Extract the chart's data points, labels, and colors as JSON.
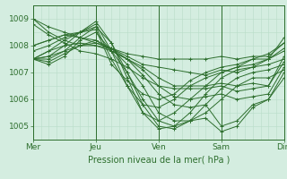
{
  "xlabel": "Pression niveau de la mer( hPa )",
  "bg_color": "#d4ede0",
  "plot_bg_color": "#d4ede0",
  "line_color": "#2d6e2d",
  "grid_color_fine": "#b8dcc8",
  "grid_color_major": "#90c8a8",
  "text_color": "#2d6e2d",
  "ylim": [
    1004.5,
    1009.5
  ],
  "xlim": [
    0,
    96
  ],
  "day_ticks": [
    0,
    24,
    48,
    72,
    96
  ],
  "day_labels": [
    "Mer",
    "Jeu",
    "Ven",
    "Sam",
    "Dim"
  ],
  "yticks": [
    1005,
    1006,
    1007,
    1008,
    1009
  ],
  "series": [
    [
      0,
      1009.0,
      6,
      1008.5,
      12,
      1008.2,
      18,
      1008.0,
      24,
      1008.0,
      30,
      1007.9,
      36,
      1007.7,
      42,
      1007.6,
      48,
      1007.5,
      54,
      1007.5,
      60,
      1007.5,
      66,
      1007.5,
      72,
      1007.6,
      78,
      1007.5,
      84,
      1007.6,
      90,
      1007.6,
      96,
      1008.1
    ],
    [
      0,
      1009.0,
      6,
      1008.7,
      12,
      1008.5,
      18,
      1008.3,
      24,
      1008.1,
      30,
      1007.9,
      36,
      1007.6,
      42,
      1007.3,
      48,
      1007.2,
      54,
      1007.1,
      60,
      1007.0,
      66,
      1006.9,
      72,
      1007.1,
      78,
      1007.0,
      84,
      1007.2,
      90,
      1007.5,
      96,
      1008.3
    ],
    [
      0,
      1008.8,
      6,
      1008.4,
      12,
      1008.1,
      18,
      1007.8,
      24,
      1007.7,
      30,
      1007.5,
      36,
      1007.2,
      42,
      1006.8,
      48,
      1006.5,
      54,
      1006.4,
      60,
      1006.4,
      66,
      1006.4,
      72,
      1006.5,
      78,
      1006.3,
      84,
      1006.4,
      90,
      1006.5,
      96,
      1007.6
    ],
    [
      0,
      1008.0,
      6,
      1008.2,
      12,
      1008.4,
      18,
      1008.3,
      24,
      1008.2,
      30,
      1007.8,
      36,
      1007.5,
      42,
      1007.2,
      48,
      1006.8,
      54,
      1006.5,
      60,
      1006.5,
      66,
      1006.5,
      72,
      1006.6,
      78,
      1006.5,
      84,
      1006.6,
      90,
      1006.5,
      96,
      1007.4
    ],
    [
      0,
      1007.5,
      6,
      1007.8,
      12,
      1008.0,
      18,
      1008.1,
      24,
      1008.0,
      30,
      1007.8,
      36,
      1007.5,
      42,
      1007.1,
      48,
      1006.5,
      54,
      1006.1,
      60,
      1006.0,
      66,
      1006.1,
      72,
      1006.2,
      78,
      1006.0,
      84,
      1006.1,
      90,
      1006.2,
      96,
      1007.2
    ],
    [
      0,
      1007.5,
      6,
      1007.6,
      12,
      1007.8,
      18,
      1008.0,
      24,
      1008.1,
      30,
      1007.9,
      36,
      1007.5,
      42,
      1006.9,
      48,
      1006.2,
      54,
      1005.8,
      60,
      1005.7,
      66,
      1005.8,
      72,
      1005.0,
      78,
      1005.2,
      84,
      1005.8,
      90,
      1006.0,
      96,
      1007.0
    ],
    [
      0,
      1007.5,
      6,
      1007.4,
      12,
      1007.7,
      18,
      1008.0,
      24,
      1008.2,
      30,
      1007.9,
      36,
      1007.3,
      42,
      1006.5,
      48,
      1005.5,
      54,
      1005.2,
      60,
      1005.2,
      66,
      1005.3,
      72,
      1004.8,
      78,
      1005.0,
      84,
      1005.7,
      90,
      1006.0,
      96,
      1006.8
    ],
    [
      0,
      1007.5,
      6,
      1007.3,
      12,
      1007.6,
      18,
      1008.2,
      24,
      1008.5,
      30,
      1007.8,
      36,
      1007.0,
      42,
      1006.0,
      48,
      1005.2,
      54,
      1005.0,
      60,
      1005.2,
      66,
      1005.5,
      72,
      1006.0,
      78,
      1006.5,
      84,
      1006.8,
      90,
      1006.8,
      96,
      1007.1
    ],
    [
      0,
      1007.5,
      6,
      1007.5,
      12,
      1007.8,
      18,
      1008.3,
      24,
      1008.7,
      30,
      1008.1,
      36,
      1007.0,
      42,
      1005.8,
      48,
      1005.0,
      54,
      1004.9,
      60,
      1005.2,
      66,
      1005.8,
      72,
      1006.4,
      78,
      1006.8,
      84,
      1007.0,
      90,
      1007.1,
      96,
      1007.3
    ],
    [
      0,
      1007.5,
      6,
      1007.6,
      12,
      1008.0,
      18,
      1008.5,
      24,
      1008.9,
      30,
      1008.1,
      36,
      1006.8,
      42,
      1005.5,
      48,
      1004.9,
      54,
      1005.0,
      60,
      1005.5,
      66,
      1006.2,
      72,
      1006.8,
      78,
      1007.1,
      84,
      1007.2,
      90,
      1007.3,
      96,
      1007.5
    ],
    [
      0,
      1007.5,
      6,
      1007.8,
      12,
      1008.2,
      18,
      1008.5,
      24,
      1008.8,
      30,
      1007.8,
      36,
      1006.5,
      42,
      1005.5,
      48,
      1005.2,
      54,
      1005.5,
      60,
      1006.0,
      66,
      1006.5,
      72,
      1007.0,
      78,
      1007.2,
      84,
      1007.3,
      90,
      1007.5,
      96,
      1007.8
    ],
    [
      0,
      1007.8,
      6,
      1008.0,
      12,
      1008.3,
      18,
      1008.5,
      24,
      1008.7,
      30,
      1007.5,
      36,
      1006.5,
      42,
      1005.8,
      48,
      1005.7,
      54,
      1006.0,
      60,
      1006.5,
      66,
      1006.8,
      72,
      1007.0,
      78,
      1007.2,
      84,
      1007.5,
      90,
      1007.5,
      96,
      1007.9
    ],
    [
      0,
      1008.0,
      6,
      1008.2,
      12,
      1008.4,
      18,
      1008.5,
      24,
      1008.6,
      30,
      1007.3,
      36,
      1006.7,
      42,
      1006.2,
      48,
      1006.0,
      54,
      1006.2,
      60,
      1006.7,
      66,
      1007.0,
      72,
      1007.2,
      78,
      1007.3,
      84,
      1007.5,
      90,
      1007.7,
      96,
      1008.1
    ]
  ]
}
